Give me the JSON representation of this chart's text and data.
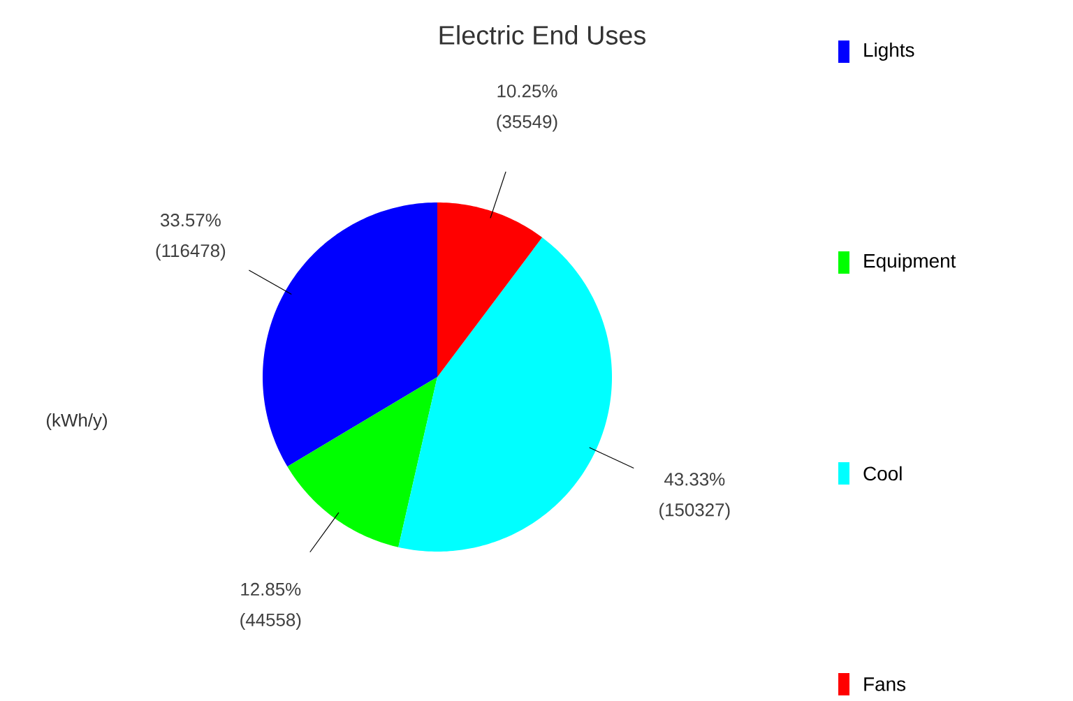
{
  "chart_data": {
    "type": "pie",
    "title": "Electric End Uses",
    "categories": [
      "Lights",
      "Equipment",
      "Cool",
      "Fans"
    ],
    "values": [
      116478,
      44558,
      150327,
      35549
    ],
    "colors": [
      "#0000ff",
      "#00ff00",
      "#00ffff",
      "#ff0000"
    ],
    "value_labels": [
      "33.57% (116478)",
      "12.85% (44558)",
      "43.33% (150327)",
      "10.25% (35549)"
    ],
    "annotations": [
      "(kWh/y)"
    ],
    "legend": "right"
  }
}
